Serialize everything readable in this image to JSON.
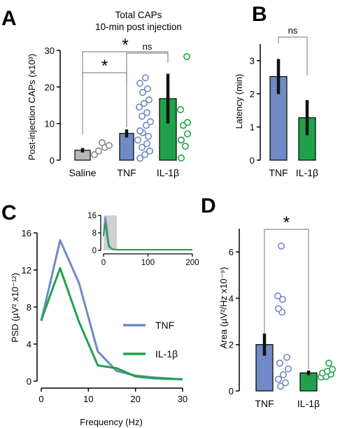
{
  "colors": {
    "tnf": "#6f8ac4",
    "il1b": "#1fa24a",
    "saline": "#b8b8b8",
    "inset_shade": "#d0d0d0",
    "sig_bracket": "#8c8c8c",
    "error_bar": "#111111"
  },
  "chart_data": [
    {
      "panel_letter": "A",
      "type": "bar",
      "title": "Total CAPs",
      "subtitle": "10-min post injection",
      "ylabel": "Post-injection CAPs (x10³)",
      "ylim": [
        0,
        30
      ],
      "yticks": [
        "0",
        "10",
        "20",
        "30"
      ],
      "categories": [
        "Saline",
        "TNF",
        "IL-1β"
      ],
      "values": [
        2.7,
        7.3,
        16.8
      ],
      "errors": [
        0.6,
        1.1,
        6.8
      ],
      "points": [
        [
          1.5,
          2.5,
          3.5,
          4.0,
          4.8
        ],
        [
          0.5,
          1.5,
          2.5,
          3.5,
          4.5,
          5.5,
          6.5,
          7.5,
          8.0,
          9.5,
          10.5,
          12.0,
          13.0,
          14.5,
          15.5,
          16.5,
          18.5,
          19.5,
          21.0,
          22.5
        ],
        [
          0.6,
          3.8,
          5.5,
          7.2,
          9.5,
          10.3,
          13.8,
          28.3
        ]
      ],
      "significance": [
        {
          "pair": [
            "Saline",
            "TNF"
          ],
          "label": "*"
        },
        {
          "pair": [
            "TNF",
            "IL-1β"
          ],
          "label": "ns"
        },
        {
          "pair": [
            "Saline",
            "IL-1β"
          ],
          "label": "*"
        }
      ]
    },
    {
      "panel_letter": "B",
      "type": "bar",
      "ylabel": "Latency (min)",
      "ylim": [
        0,
        3.5
      ],
      "yticks": [
        "0",
        "1",
        "2",
        "3"
      ],
      "categories": [
        "TNF",
        "IL-1β"
      ],
      "values": [
        2.52,
        1.28
      ],
      "errors": [
        0.53,
        0.53
      ],
      "significance": [
        {
          "pair": [
            "TNF",
            "IL-1β"
          ],
          "label": "ns"
        }
      ]
    },
    {
      "panel_letter": "C",
      "type": "line",
      "xlabel": "Frequency (Hz)",
      "ylabel": "PSD (µV² x10⁻¹²)",
      "xlim": [
        0,
        30
      ],
      "ylim": [
        0,
        16
      ],
      "xticks": [
        "0",
        "10",
        "20",
        "30"
      ],
      "yticks": [
        "0",
        "4",
        "8",
        "12",
        "16"
      ],
      "x": [
        0,
        4,
        8,
        12,
        16,
        20,
        24,
        30
      ],
      "series": [
        {
          "name": "TNF",
          "values": [
            6.5,
            15.2,
            10.6,
            3.2,
            1.1,
            0.6,
            0.4,
            0.2
          ]
        },
        {
          "name": "IL-1β",
          "values": [
            6.6,
            12.2,
            6.4,
            1.7,
            1.4,
            0.5,
            0.3,
            0.2
          ]
        }
      ],
      "inset": {
        "xlim": [
          0,
          200
        ],
        "ylim": [
          0,
          16
        ],
        "xticks": [
          "0",
          "100",
          "200"
        ],
        "yticks": [
          "0",
          "8",
          "16"
        ],
        "shaded_range": [
          0,
          30
        ],
        "x": [
          0,
          2,
          4,
          6,
          8,
          10,
          12,
          15,
          20,
          30,
          40,
          60,
          100,
          150,
          200
        ],
        "series": [
          {
            "name": "TNF",
            "values": [
              6.5,
              12.0,
              15.2,
              13.0,
              10.6,
              6.0,
              3.2,
              1.2,
              0.6,
              0.3,
              0.3,
              0.3,
              0.3,
              0.3,
              0.3
            ]
          },
          {
            "name": "IL-1β",
            "values": [
              6.6,
              10.5,
              12.2,
              9.0,
              6.4,
              3.5,
              1.7,
              1.4,
              0.5,
              0.3,
              0.3,
              0.3,
              0.3,
              0.3,
              0.3
            ]
          }
        ]
      }
    },
    {
      "panel_letter": "D",
      "type": "bar",
      "ylabel": "Area (µV²/Hz x10⁻⁹)",
      "ylim": [
        0,
        7
      ],
      "yticks": [
        "0",
        "2",
        "4",
        "6"
      ],
      "categories": [
        "TNF",
        "IL-1β"
      ],
      "values": [
        2.0,
        0.78
      ],
      "errors": [
        0.48,
        0.1
      ],
      "points": [
        [
          0.2,
          0.35,
          0.5,
          0.7,
          0.95,
          1.2,
          1.45,
          3.4,
          3.55,
          3.95,
          4.1,
          6.25
        ],
        [
          0.6,
          0.62,
          0.72,
          0.77,
          0.85,
          0.93,
          1.2
        ]
      ],
      "significance": [
        {
          "pair": [
            "TNF",
            "IL-1β"
          ],
          "label": "*"
        }
      ]
    }
  ]
}
